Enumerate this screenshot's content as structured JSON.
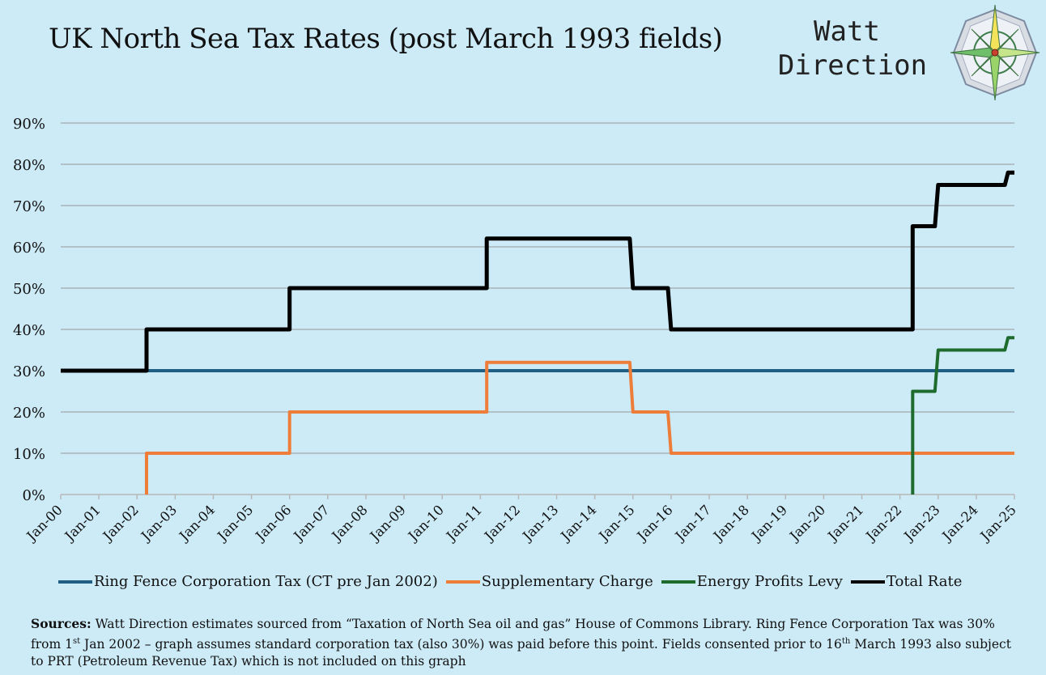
{
  "title": "UK North Sea Tax Rates (post March 1993 fields)",
  "brand": {
    "line1": "Watt",
    "line2": "Direction"
  },
  "icons": {
    "logo": "compass-rose-icon"
  },
  "colors": {
    "background": "#cdebf7",
    "ring_fence": "#1f5f86",
    "supplementary": "#ef7d3a",
    "energy_profits": "#1e6b2e",
    "total": "#000000",
    "grid": "#a9b3b8"
  },
  "sources": {
    "label": "Sources:",
    "text_1": " Watt Direction estimates sourced from “Taxation of North Sea oil and gas” House of Commons Library. Ring Fence Corporation Tax was 30% from 1",
    "sup_1": "st",
    "text_2": " Jan 2002 – graph assumes standard corporation tax (also 30%) was paid before this point. Fields consented prior to 16",
    "sup_2": "th",
    "text_3": " March 1993 also subject to PRT (Petroleum Revenue Tax) which is not included on this graph"
  },
  "chart_data": {
    "type": "line",
    "x_ticks": [
      "Jan-00",
      "Jan-01",
      "Jan-02",
      "Jan-03",
      "Jan-04",
      "Jan-05",
      "Jan-06",
      "Jan-07",
      "Jan-08",
      "Jan-09",
      "Jan-10",
      "Jan-11",
      "Jan-12",
      "Jan-13",
      "Jan-14",
      "Jan-15",
      "Jan-16",
      "Jan-17",
      "Jan-18",
      "Jan-19",
      "Jan-20",
      "Jan-21",
      "Jan-22",
      "Jan-23",
      "Jan-24",
      "Jan-25"
    ],
    "y_ticks": [
      "0%",
      "10%",
      "20%",
      "30%",
      "40%",
      "50%",
      "60%",
      "70%",
      "80%",
      "90%"
    ],
    "ylim": [
      0,
      90
    ],
    "xlim": [
      "2000-01",
      "2025-01"
    ],
    "grid": true,
    "legend_position": "bottom",
    "series": [
      {
        "name": "Ring Fence Corporation Tax (CT pre Jan 2002)",
        "color": "#1f5f86",
        "points": [
          [
            "2000-01",
            30
          ],
          [
            "2025-01",
            30
          ]
        ]
      },
      {
        "name": "Supplementary Charge",
        "color": "#ef7d3a",
        "points": [
          [
            "2002-04",
            0
          ],
          [
            "2002-04",
            10
          ],
          [
            "2006-01",
            10
          ],
          [
            "2006-01",
            20
          ],
          [
            "2011-03",
            20
          ],
          [
            "2011-03",
            32
          ],
          [
            "2014-12",
            32
          ],
          [
            "2015-01",
            20
          ],
          [
            "2015-12",
            20
          ],
          [
            "2016-01",
            10
          ],
          [
            "2025-01",
            10
          ]
        ]
      },
      {
        "name": "Energy Profits Levy",
        "color": "#1e6b2e",
        "points": [
          [
            "2022-05",
            0
          ],
          [
            "2022-05",
            25
          ],
          [
            "2022-12",
            25
          ],
          [
            "2023-01",
            35
          ],
          [
            "2024-10",
            35
          ],
          [
            "2024-11",
            38
          ],
          [
            "2025-01",
            38
          ]
        ]
      },
      {
        "name": "Total Rate",
        "color": "#000000",
        "points": [
          [
            "2000-01",
            30
          ],
          [
            "2002-04",
            30
          ],
          [
            "2002-04",
            40
          ],
          [
            "2006-01",
            40
          ],
          [
            "2006-01",
            50
          ],
          [
            "2011-03",
            50
          ],
          [
            "2011-03",
            62
          ],
          [
            "2014-12",
            62
          ],
          [
            "2015-01",
            50
          ],
          [
            "2015-12",
            50
          ],
          [
            "2016-01",
            40
          ],
          [
            "2022-05",
            40
          ],
          [
            "2022-05",
            65
          ],
          [
            "2022-12",
            65
          ],
          [
            "2023-01",
            75
          ],
          [
            "2024-10",
            75
          ],
          [
            "2024-11",
            78
          ],
          [
            "2025-01",
            78
          ]
        ]
      }
    ]
  }
}
